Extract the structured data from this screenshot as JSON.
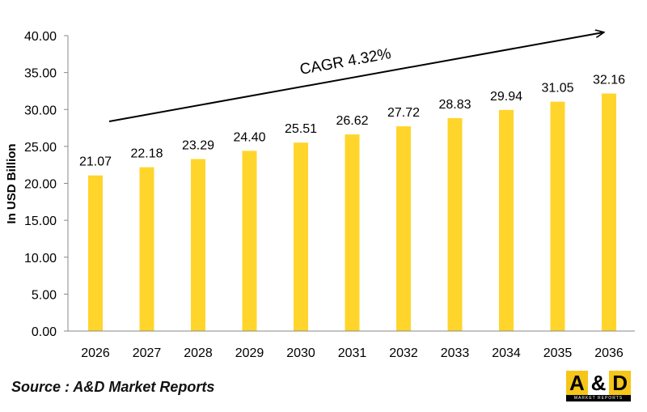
{
  "chart_data": {
    "type": "bar",
    "categories": [
      "2026",
      "2027",
      "2028",
      "2029",
      "2030",
      "2031",
      "2032",
      "2033",
      "2034",
      "2035",
      "2036"
    ],
    "values": [
      21.07,
      22.18,
      23.29,
      24.4,
      25.51,
      26.62,
      27.72,
      28.83,
      29.94,
      31.05,
      32.16
    ],
    "data_labels": [
      "21.07",
      "22.18",
      "23.29",
      "24.40",
      "25.51",
      "26.62",
      "27.72",
      "28.83",
      "29.94",
      "31.05",
      "32.16"
    ],
    "ylabel": "In USD Billion",
    "xlabel": "",
    "ylim": [
      0,
      40
    ],
    "yticks": [
      "0.00",
      "5.00",
      "10.00",
      "15.00",
      "20.00",
      "25.00",
      "30.00",
      "35.00",
      "40.00"
    ],
    "grid": false,
    "bar_color": "#FFD52B",
    "annotation": "CAGR 4.32%"
  },
  "source": "Source : A&D Market Reports",
  "logo": {
    "left": "A",
    "mid": "&",
    "right": "D",
    "sub": "MARKET REPORTS"
  }
}
